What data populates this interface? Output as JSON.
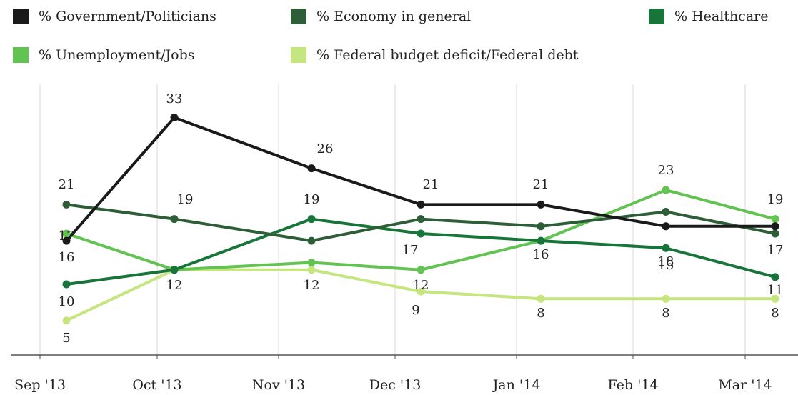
{
  "chart_data": {
    "type": "line",
    "title": "",
    "xlabel": "",
    "ylabel": "",
    "ylim": [
      0,
      35
    ],
    "grid": "vertical",
    "legend_placement": "top",
    "x_ticks": [
      "Sep '13",
      "Oct '13",
      "Nov '13",
      "Dec '13",
      "Jan '14",
      "Feb '14",
      "Mar '14"
    ],
    "x": [
      "2013-09-05",
      "2013-10-03",
      "2013-11-07",
      "2013-12-05",
      "2014-01-05",
      "2014-02-06",
      "2014-03-06"
    ],
    "series": [
      {
        "name": "% Government/Politicians",
        "color": "#1a1a1a",
        "values": [
          16,
          33,
          26,
          21,
          21,
          18,
          18
        ],
        "labels": [
          "16",
          "33",
          "26",
          "21",
          "21",
          "18",
          ""
        ]
      },
      {
        "name": "% Economy in general",
        "color": "#2e5e38",
        "values": [
          21,
          19,
          16,
          19,
          18,
          20,
          17
        ],
        "labels": [
          "21",
          "19",
          "",
          "",
          "",
          "",
          "17"
        ]
      },
      {
        "name": "% Healthcare",
        "color": "#17753a",
        "values": [
          10,
          12,
          19,
          17,
          16,
          15,
          11
        ],
        "labels": [
          "10",
          "",
          "19",
          "17",
          "",
          "15",
          "11"
        ]
      },
      {
        "name": "% Unemployment/Jobs",
        "color": "#62c252",
        "values": [
          17,
          12,
          13,
          12,
          16,
          23,
          19
        ],
        "labels": [
          "17",
          "12",
          "",
          "12",
          "16",
          "23",
          "19"
        ]
      },
      {
        "name": "% Federal budget deficit/Federal debt",
        "color": "#c5e57e",
        "values": [
          5,
          12,
          12,
          9,
          8,
          8,
          8
        ],
        "labels": [
          "5",
          "",
          "12",
          "9",
          "8",
          "8",
          "8"
        ]
      }
    ]
  }
}
